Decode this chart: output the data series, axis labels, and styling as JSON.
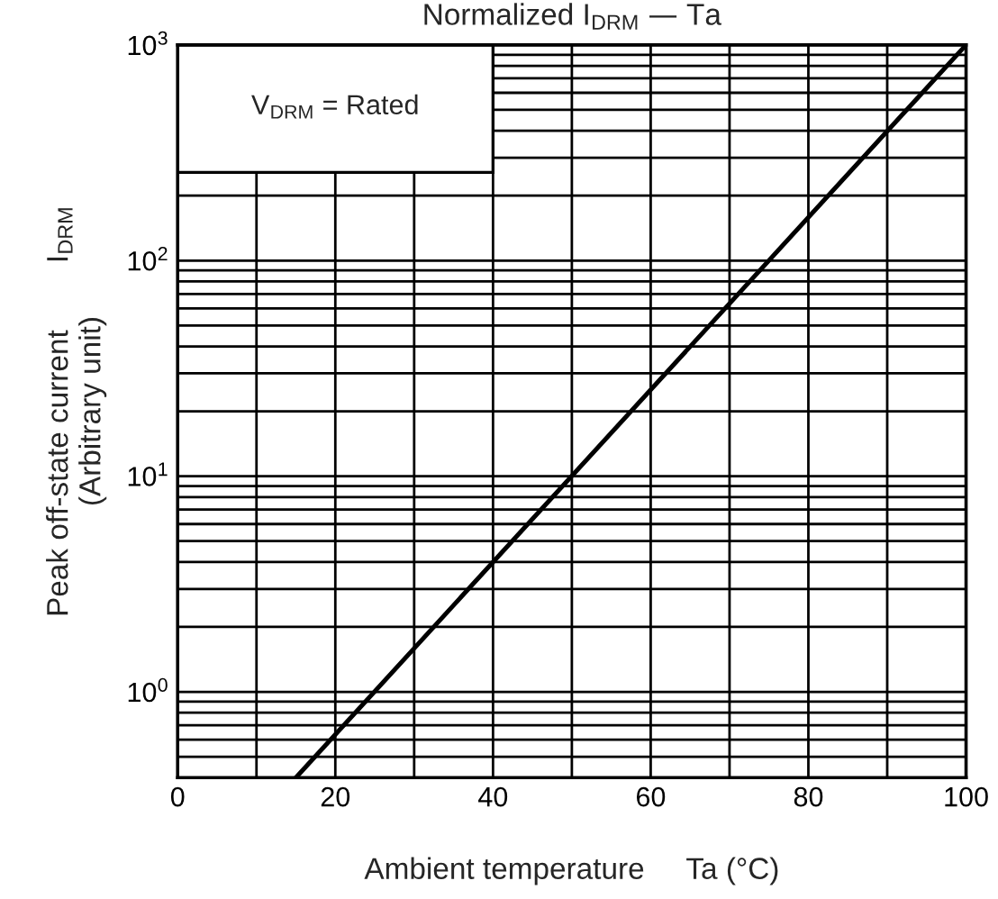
{
  "chart_data": {
    "type": "line",
    "title": "Normalized I$_{DRM}$ — Ta",
    "xlabel": "Ambient temperature     Ta (°C)",
    "ylabel": "Peak off-state current        I$_{DRM}$\n(Arbitrary unit)",
    "annotations": [
      "V$_{DRM}$ = Rated"
    ],
    "series": [
      {
        "color": "#000000",
        "x": [
          15,
          100
        ],
        "values": [
          0.4,
          1000
        ]
      }
    ],
    "log": true,
    "xlim": [
      0,
      100
    ],
    "ylim": [
      0.4,
      1000
    ],
    "xticks": [
      0,
      {
        "value": 10,
        "label": null
      },
      20,
      {
        "value": 30,
        "label": null
      },
      40,
      {
        "value": 50,
        "label": null
      },
      60,
      {
        "value": 70,
        "label": null
      },
      80,
      {
        "value": 90,
        "label": null
      },
      100
    ],
    "yticks": [
      {
        "value": 0.5,
        "label": null
      },
      {
        "value": 0.6,
        "label": null
      },
      {
        "value": 0.7,
        "label": null
      },
      {
        "value": 0.8,
        "label": null
      },
      {
        "value": 0.9,
        "label": null
      },
      {
        "value": 1,
        "label": "10$^{0}$"
      },
      {
        "value": 2,
        "label": null
      },
      {
        "value": 3,
        "label": null
      },
      {
        "value": 4,
        "label": null
      },
      {
        "value": 5,
        "label": null
      },
      {
        "value": 6,
        "label": null
      },
      {
        "value": 7,
        "label": null
      },
      {
        "value": 8,
        "label": null
      },
      {
        "value": 9,
        "label": null
      },
      {
        "value": 10,
        "label": "10$^{1}$"
      },
      {
        "value": 20,
        "label": null
      },
      {
        "value": 30,
        "label": null
      },
      {
        "value": 40,
        "label": null
      },
      {
        "value": 50,
        "label": null
      },
      {
        "value": 60,
        "label": null
      },
      {
        "value": 70,
        "label": null
      },
      {
        "value": 80,
        "label": null
      },
      {
        "value": 90,
        "label": null
      },
      {
        "value": 100,
        "label": "10$^{2}$"
      },
      {
        "value": 200,
        "label": null
      },
      {
        "value": 300,
        "label": null
      },
      {
        "value": 400,
        "label": null
      },
      {
        "value": 500,
        "label": null
      },
      {
        "value": 600,
        "label": null
      },
      {
        "value": 700,
        "label": null
      },
      {
        "value": 800,
        "label": null
      },
      {
        "value": 900,
        "label": null
      },
      {
        "value": 1000,
        "label": "10$^{3}$"
      }
    ],
    "grid": true,
    "marker": "none",
    "line_style": "solid"
  }
}
